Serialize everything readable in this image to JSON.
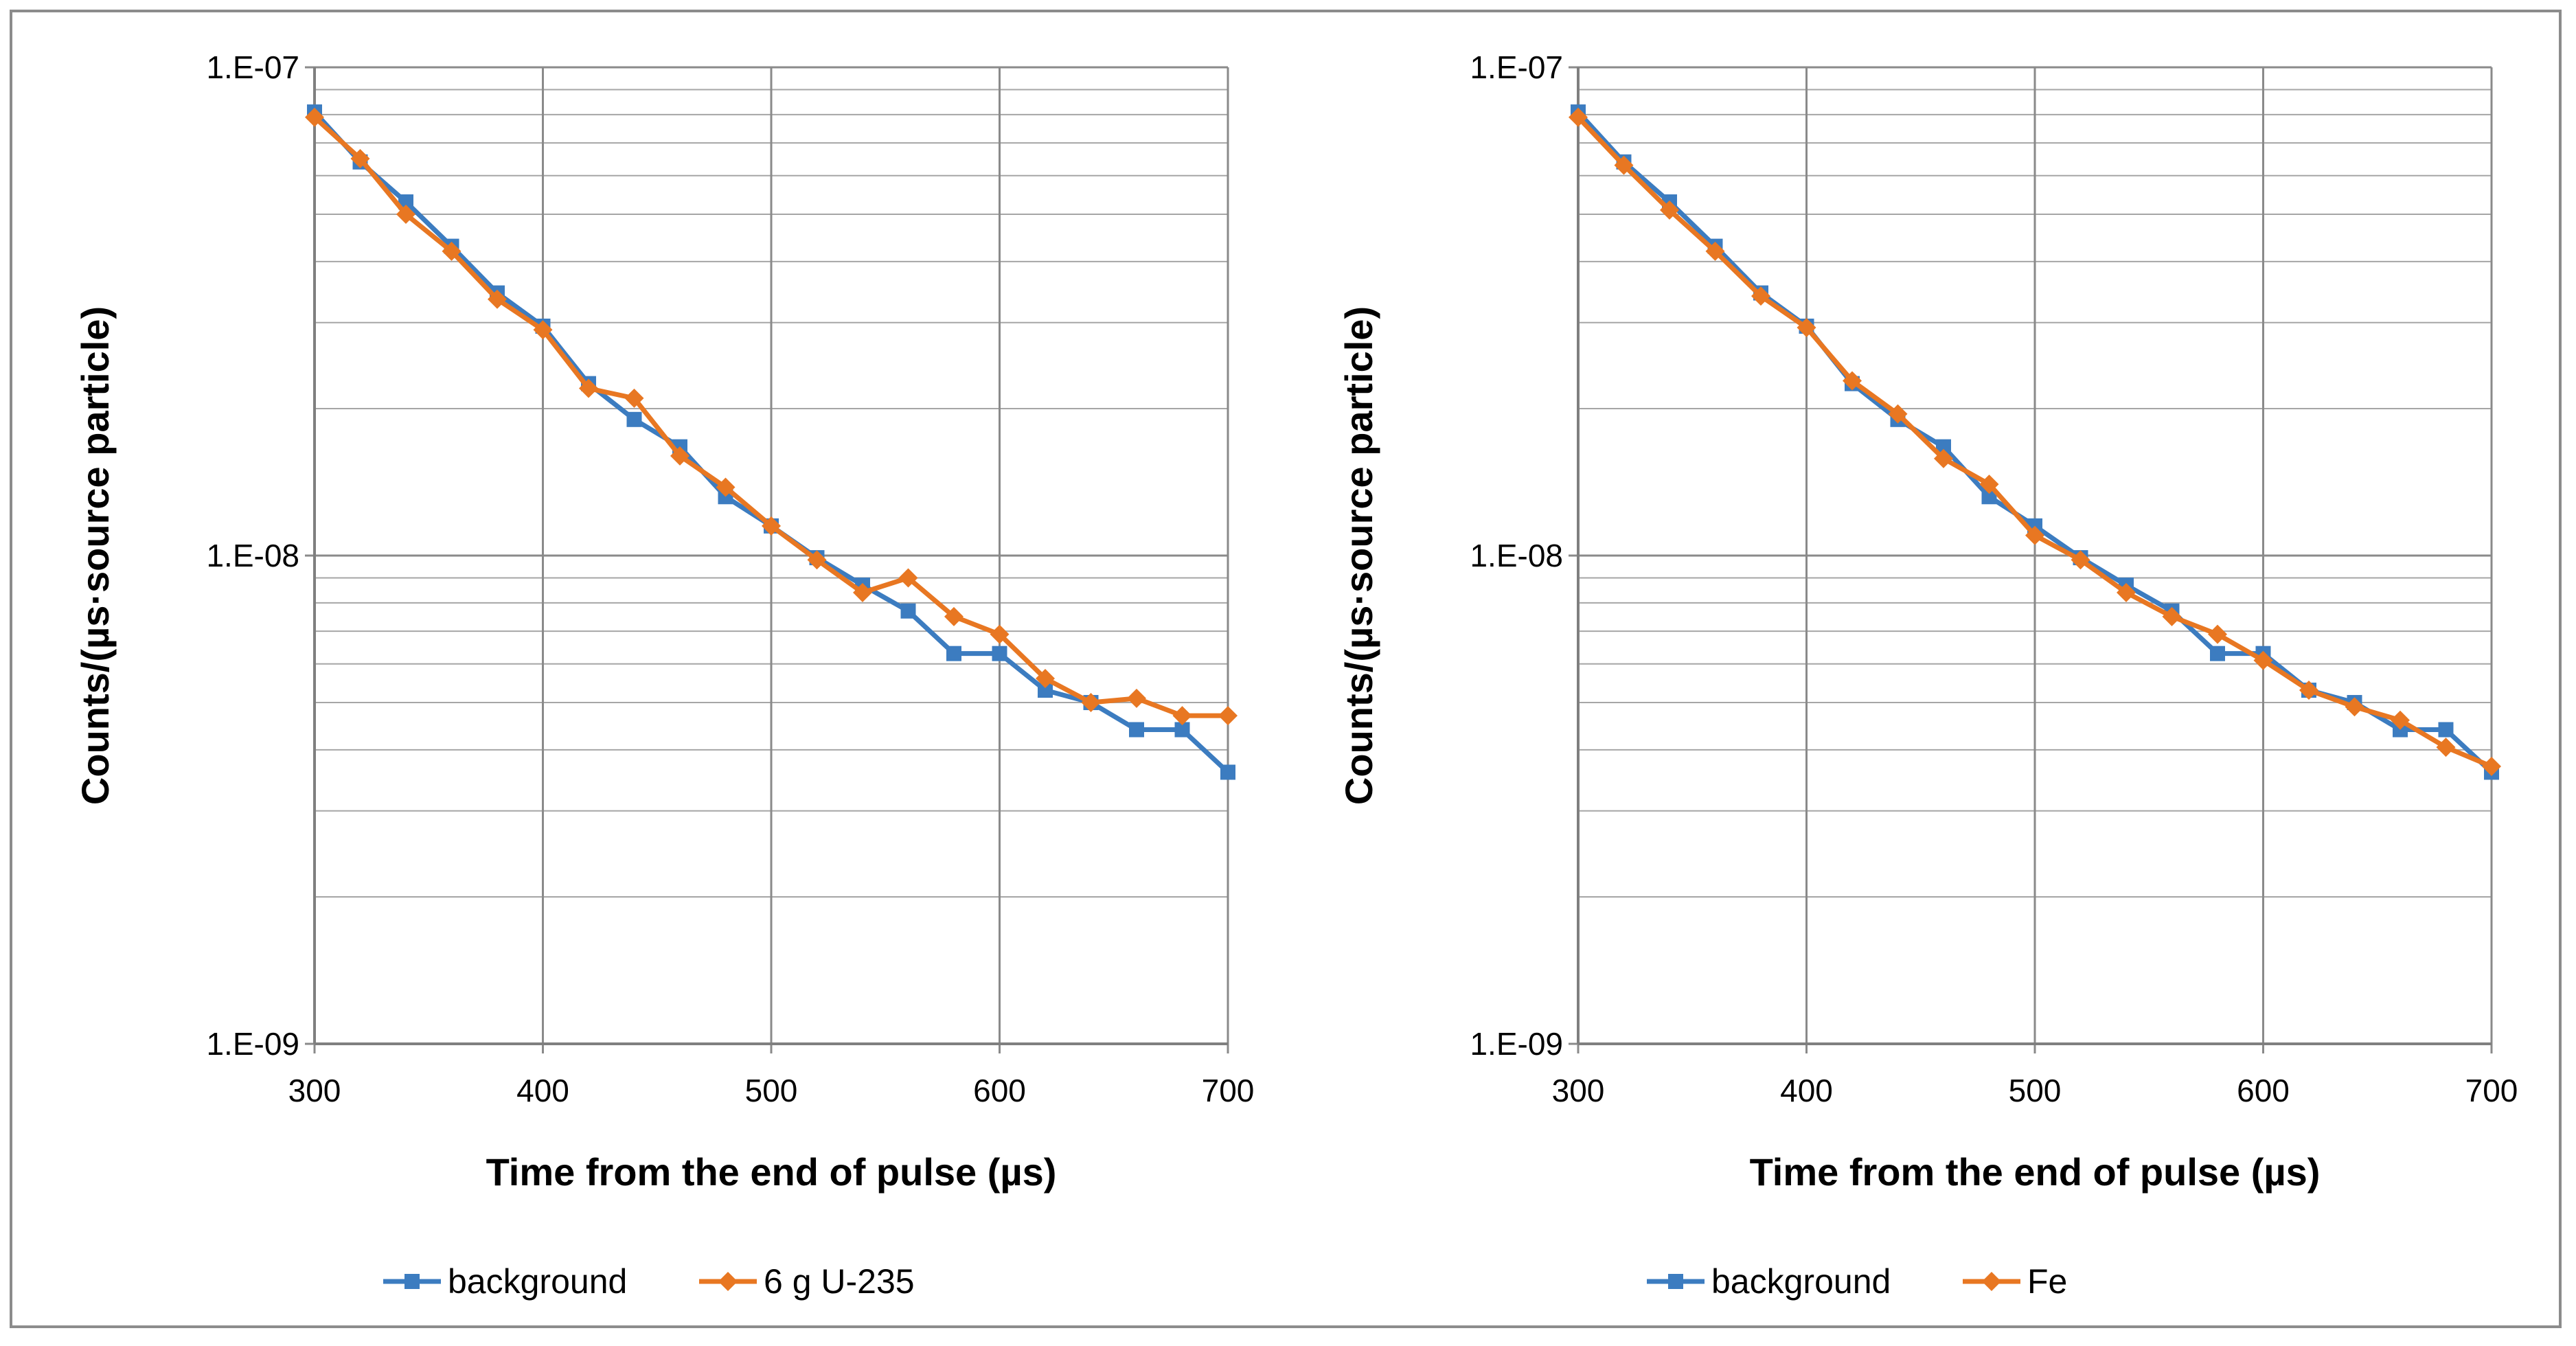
{
  "colors": {
    "background": "#3c7cc0",
    "sample": "#e87722",
    "grid": "#a6a6a6",
    "frame": "#8c8c8c"
  },
  "chart_data": [
    {
      "type": "line",
      "yscale": "log",
      "xlabel": "Time from the end of pulse (µs)",
      "ylabel": "Counts/(µs·source particle)",
      "xlim": [
        300,
        700
      ],
      "ylim": [
        1e-09,
        1e-07
      ],
      "xticks": [
        300,
        400,
        500,
        600,
        700
      ],
      "xtick_labels": [
        "300",
        "400",
        "500",
        "600",
        "700"
      ],
      "yticks": [
        1e-09,
        1e-08,
        1e-07
      ],
      "ytick_labels": [
        "1.E-09",
        "1.E-08",
        "1.E-07"
      ],
      "legend_position": "bottom",
      "x": [
        300,
        320,
        340,
        360,
        380,
        400,
        420,
        440,
        460,
        480,
        500,
        520,
        540,
        560,
        580,
        600,
        620,
        640,
        660,
        680,
        700
      ],
      "series": [
        {
          "name": "background",
          "color_key": "background",
          "marker": "square",
          "values": [
            8.1e-08,
            6.4e-08,
            5.3e-08,
            4.3e-08,
            3.45e-08,
            2.95e-08,
            2.25e-08,
            1.9e-08,
            1.67e-08,
            1.32e-08,
            1.15e-08,
            9.9e-09,
            8.7e-09,
            7.7e-09,
            6.3e-09,
            6.3e-09,
            5.3e-09,
            5e-09,
            4.4e-09,
            4.4e-09,
            3.6e-09
          ]
        },
        {
          "name": "6 g U-235",
          "color_key": "sample",
          "marker": "diamond",
          "values": [
            7.9e-08,
            6.5e-08,
            5e-08,
            4.2e-08,
            3.35e-08,
            2.9e-08,
            2.2e-08,
            2.1e-08,
            1.6e-08,
            1.38e-08,
            1.15e-08,
            9.8e-09,
            8.4e-09,
            9e-09,
            7.5e-09,
            6.9e-09,
            5.6e-09,
            5e-09,
            5.1e-09,
            4.7e-09,
            4.7e-09
          ]
        }
      ]
    },
    {
      "type": "line",
      "yscale": "log",
      "xlabel": "Time from the end of pulse (µs)",
      "ylabel": "Counts/(µs·source particle)",
      "xlim": [
        300,
        700
      ],
      "ylim": [
        1e-09,
        1e-07
      ],
      "xticks": [
        300,
        400,
        500,
        600,
        700
      ],
      "xtick_labels": [
        "300",
        "400",
        "500",
        "600",
        "700"
      ],
      "yticks": [
        1e-09,
        1e-08,
        1e-07
      ],
      "ytick_labels": [
        "1.E-09",
        "1.E-08",
        "1.E-07"
      ],
      "legend_position": "bottom",
      "x": [
        300,
        320,
        340,
        360,
        380,
        400,
        420,
        440,
        460,
        480,
        500,
        520,
        540,
        560,
        580,
        600,
        620,
        640,
        660,
        680,
        700
      ],
      "series": [
        {
          "name": "background",
          "color_key": "background",
          "marker": "square",
          "values": [
            8.1e-08,
            6.4e-08,
            5.3e-08,
            4.3e-08,
            3.45e-08,
            2.95e-08,
            2.25e-08,
            1.9e-08,
            1.67e-08,
            1.32e-08,
            1.15e-08,
            9.9e-09,
            8.7e-09,
            7.7e-09,
            6.3e-09,
            6.3e-09,
            5.3e-09,
            5e-09,
            4.4e-09,
            4.4e-09,
            3.6e-09
          ]
        },
        {
          "name": "Fe",
          "color_key": "sample",
          "marker": "diamond",
          "values": [
            7.9e-08,
            6.3e-08,
            5.1e-08,
            4.2e-08,
            3.4e-08,
            2.93e-08,
            2.28e-08,
            1.95e-08,
            1.58e-08,
            1.4e-08,
            1.1e-08,
            9.8e-09,
            8.4e-09,
            7.5e-09,
            6.9e-09,
            6.1e-09,
            5.3e-09,
            4.9e-09,
            4.6e-09,
            4.05e-09,
            3.7e-09
          ]
        }
      ]
    }
  ]
}
